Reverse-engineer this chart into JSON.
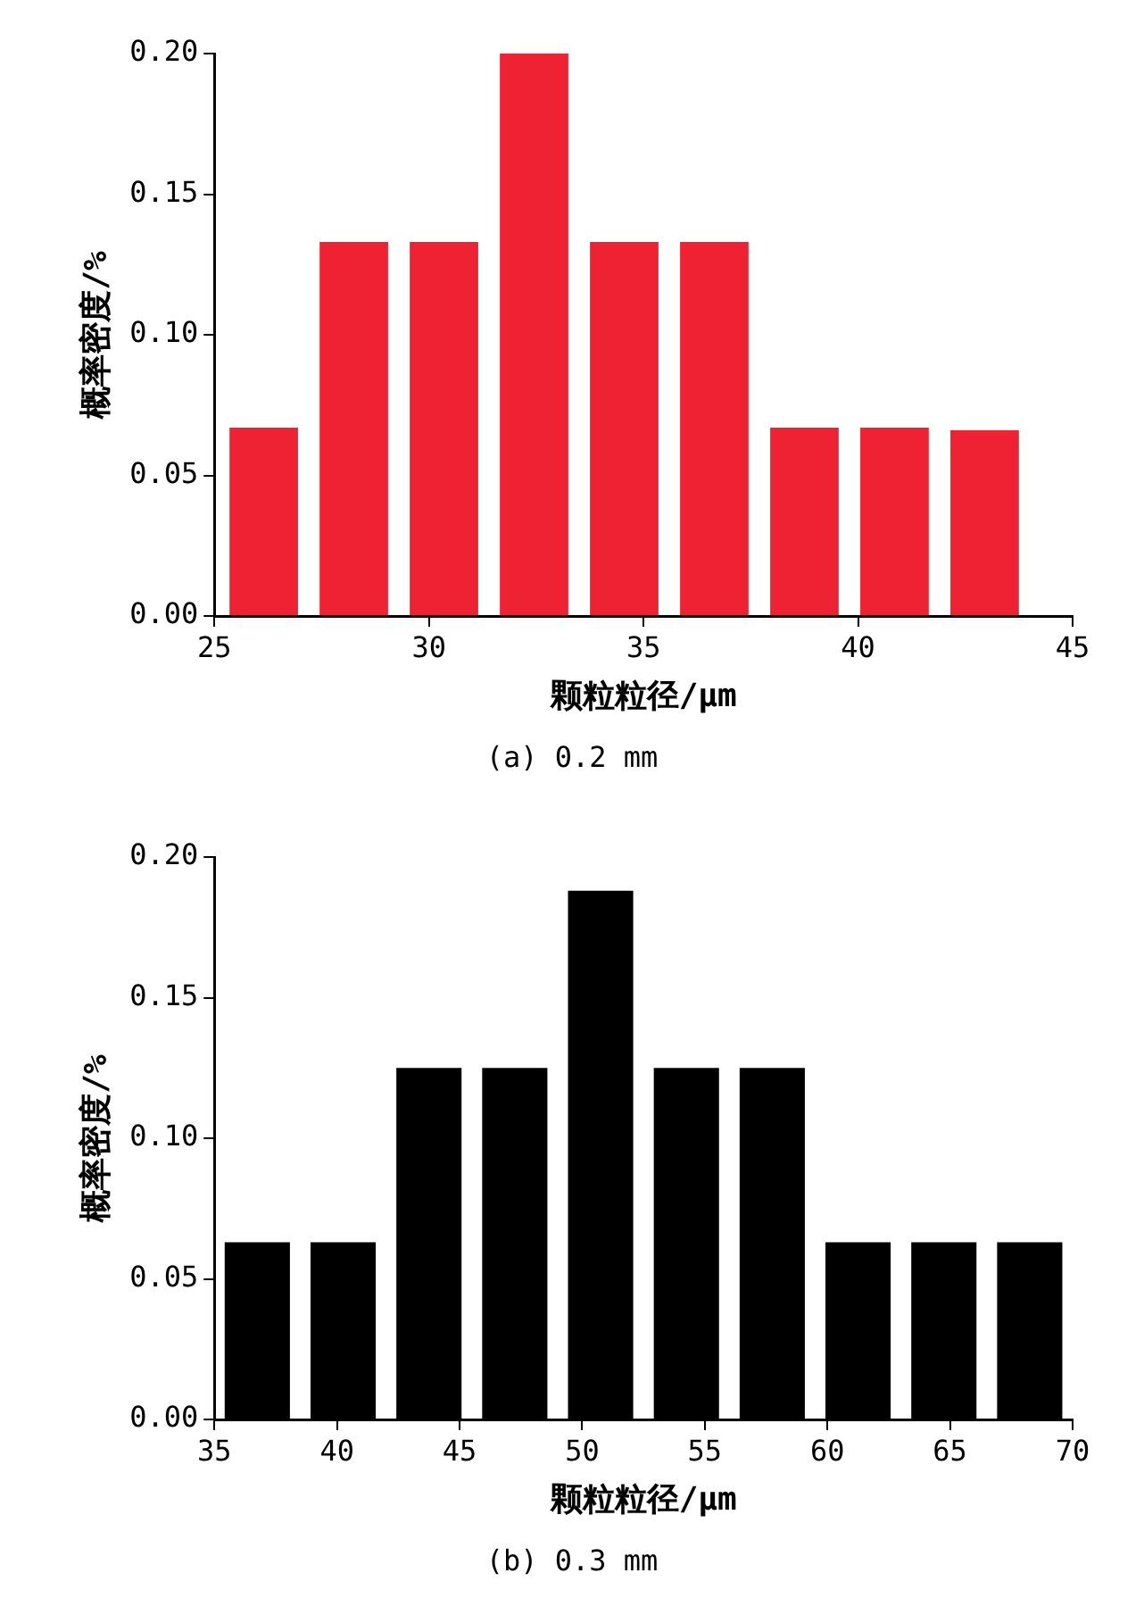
{
  "chart_data": [
    {
      "type": "histogram",
      "title": "(a) 0.2 mm",
      "xlabel": "颗粒粒径/μm",
      "ylabel": "概率密度/%",
      "bins": [
        25.1,
        27.2,
        29.3,
        31.4,
        33.5,
        35.6,
        37.7,
        39.8,
        41.9,
        44.0
      ],
      "values": [
        0.067,
        0.133,
        0.133,
        0.2,
        0.133,
        0.133,
        0.067,
        0.067,
        0.066
      ],
      "color": "#ee2233",
      "xlim": [
        25,
        45
      ],
      "xticks": [
        25,
        30,
        35,
        40,
        45
      ],
      "ylim": [
        0,
        0.2
      ],
      "yticks": [
        {
          "value": 0,
          "label": "0.00"
        },
        {
          "value": 0.05,
          "label": "0.05"
        },
        {
          "value": 0.1,
          "label": "0.10"
        },
        {
          "value": 0.15,
          "label": "0.15"
        },
        {
          "value": 0.2,
          "label": "0.20"
        }
      ],
      "grid": false
    },
    {
      "type": "histogram",
      "title": "(b) 0.3 mm",
      "xlabel": "颗粒粒径/μm",
      "ylabel": "概率密度/%",
      "bins": [
        35,
        38.5,
        42,
        45.5,
        49,
        52.5,
        56,
        59.5,
        63,
        66.5,
        70
      ],
      "values": [
        0.063,
        0.063,
        0.125,
        0.125,
        0.188,
        0.125,
        0.125,
        0.063,
        0.063,
        0.063
      ],
      "color": "#000000",
      "xlim": [
        35,
        70
      ],
      "xticks": [
        35,
        40,
        45,
        50,
        55,
        60,
        65,
        70
      ],
      "ylim": [
        0,
        0.2
      ],
      "yticks": [
        {
          "value": 0,
          "label": "0.00"
        },
        {
          "value": 0.05,
          "label": "0.05"
        },
        {
          "value": 0.1,
          "label": "0.10"
        },
        {
          "value": 0.15,
          "label": "0.15"
        },
        {
          "value": 0.2,
          "label": "0.20"
        }
      ],
      "grid": false
    }
  ]
}
